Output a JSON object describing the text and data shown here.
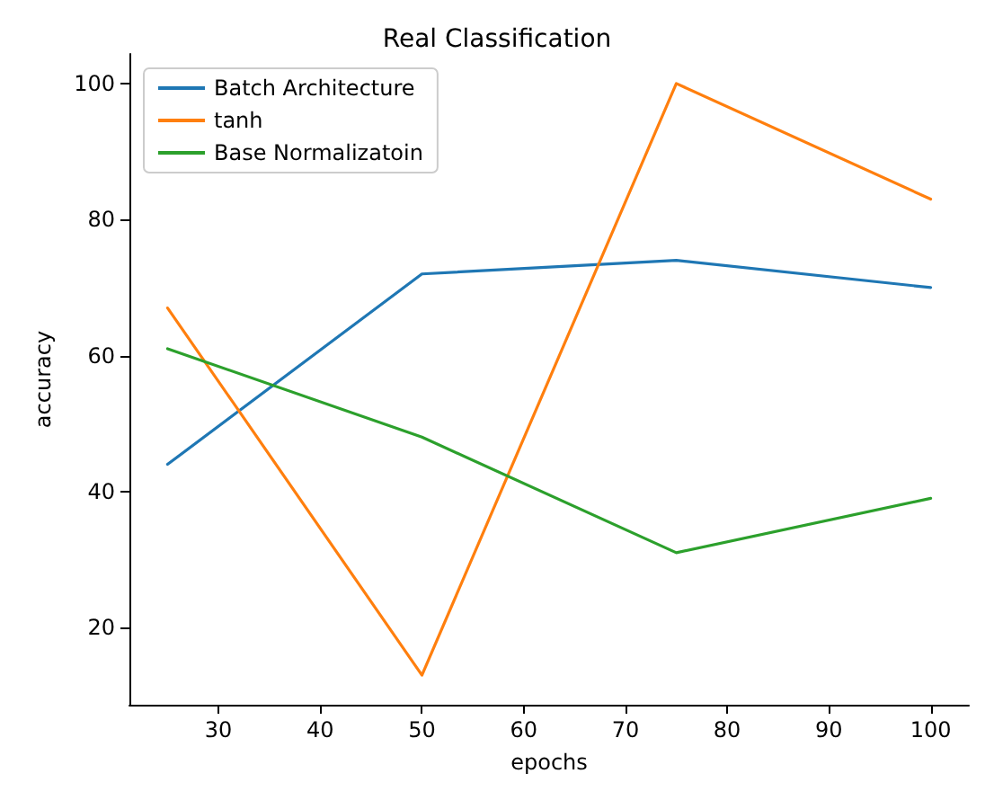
{
  "chart_data": {
    "type": "line",
    "title": "Real Classification",
    "xlabel": "epochs",
    "ylabel": "accuracy",
    "x": [
      25,
      50,
      75,
      100
    ],
    "series": [
      {
        "name": "Batch Architecture",
        "color": "#1f77b4",
        "values": [
          44,
          72,
          74,
          70
        ]
      },
      {
        "name": "tanh",
        "color": "#ff7f0e",
        "values": [
          67,
          13,
          100,
          83
        ]
      },
      {
        "name": "Base Normalizatoin",
        "color": "#2ca02c",
        "values": [
          61,
          48,
          31,
          39
        ]
      }
    ],
    "xlim": [
      21.25,
      103.75
    ],
    "xticks": [
      30,
      40,
      50,
      60,
      70,
      80,
      90,
      100
    ],
    "ylim": [
      8.65,
      104.35
    ],
    "yticks": [
      20,
      40,
      60,
      80,
      100
    ],
    "legend": "top left",
    "grid": false,
    "marker": "none",
    "line_style": "solid"
  }
}
